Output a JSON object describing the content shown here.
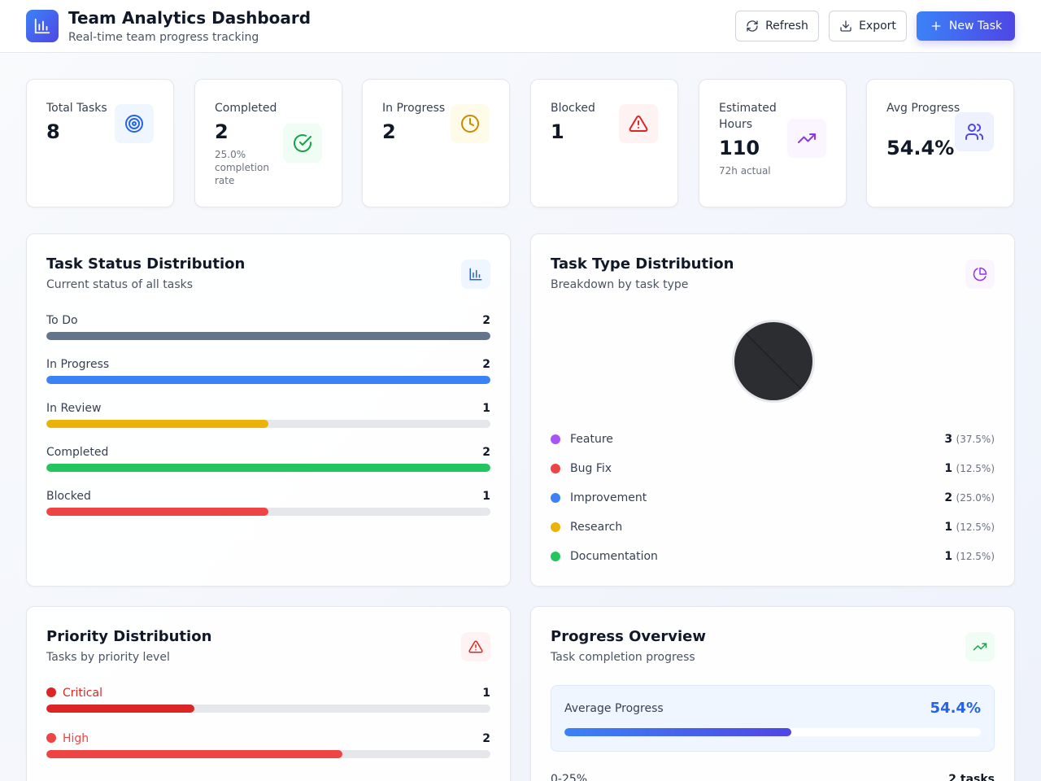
{
  "header": {
    "title": "Team Analytics Dashboard",
    "subtitle": "Real-time team progress tracking",
    "refresh_label": "Refresh",
    "export_label": "Export",
    "new_task_label": "New Task"
  },
  "stats": {
    "total": {
      "label": "Total Tasks",
      "value": "8"
    },
    "completed": {
      "label": "Completed",
      "value": "2",
      "sub": "25.0% completion rate"
    },
    "in_progress": {
      "label": "In Progress",
      "value": "2"
    },
    "blocked": {
      "label": "Blocked",
      "value": "1"
    },
    "hours": {
      "label": "Estimated Hours",
      "value": "110",
      "sub": "72h actual"
    },
    "avg": {
      "label": "Avg Progress",
      "value": "54.4%"
    }
  },
  "status_panel": {
    "title": "Task Status Distribution",
    "subtitle": "Current status of all tasks",
    "max": 2,
    "items": [
      {
        "label": "To Do",
        "count": 2,
        "color": "#64748b"
      },
      {
        "label": "In Progress",
        "count": 2,
        "color": "#3b82f6"
      },
      {
        "label": "In Review",
        "count": 1,
        "color": "#eab308"
      },
      {
        "label": "Completed",
        "count": 2,
        "color": "#22c55e"
      },
      {
        "label": "Blocked",
        "count": 1,
        "color": "#ef4444"
      }
    ]
  },
  "type_panel": {
    "title": "Task Type Distribution",
    "subtitle": "Breakdown by task type",
    "items": [
      {
        "label": "Feature",
        "count": "3",
        "pct": "(37.5%)",
        "color": "#a855f7"
      },
      {
        "label": "Bug Fix",
        "count": "1",
        "pct": "(12.5%)",
        "color": "#ef4444"
      },
      {
        "label": "Improvement",
        "count": "2",
        "pct": "(25.0%)",
        "color": "#3b82f6"
      },
      {
        "label": "Research",
        "count": "1",
        "pct": "(12.5%)",
        "color": "#eab308"
      },
      {
        "label": "Documentation",
        "count": "1",
        "pct": "(12.5%)",
        "color": "#22c55e"
      }
    ]
  },
  "priority_panel": {
    "title": "Priority Distribution",
    "subtitle": "Tasks by priority level",
    "max": 3,
    "items": [
      {
        "label": "Critical",
        "count": 1,
        "color": "#dc2626"
      },
      {
        "label": "High",
        "count": 2,
        "color": "#ef4444"
      }
    ]
  },
  "progress_panel": {
    "title": "Progress Overview",
    "subtitle": "Task completion progress",
    "avg_label": "Average Progress",
    "avg_value": "54.4%",
    "avg_fraction": 0.544,
    "range_label": "0-25%",
    "range_value": "2 tasks"
  },
  "colors": {
    "accent": "#3b82f6",
    "accent_dark": "#4f46e5"
  }
}
